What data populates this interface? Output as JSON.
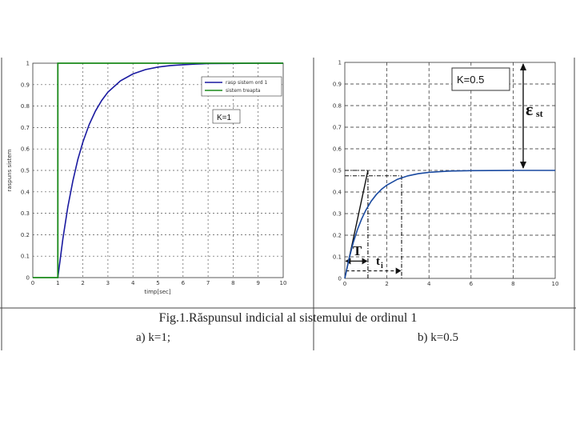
{
  "caption": "Fig.1.Răspunsul indicial al sistemului de ordinul 1",
  "subcaption_a": "a) k=1;",
  "subcaption_b": "b) k=0.5",
  "chart_data": [
    {
      "type": "line",
      "xlabel": "timp[sec]",
      "ylabel": "raspuns sistem",
      "xlim": [
        0,
        10
      ],
      "ylim": [
        0,
        1
      ],
      "x_ticks": [
        0,
        1,
        2,
        3,
        4,
        5,
        6,
        7,
        8,
        9,
        10
      ],
      "y_ticks": [
        0,
        0.1,
        0.2,
        0.3,
        0.4,
        0.5,
        0.6,
        0.7,
        0.8,
        0.9,
        1
      ],
      "grid": true,
      "legend_position": "top-right",
      "annotation": "K=1",
      "series": [
        {
          "name": "rasp sistem ord 1",
          "color": "#1a1aa0",
          "x": [
            1,
            1.2,
            1.4,
            1.6,
            1.8,
            2,
            2.25,
            2.5,
            2.75,
            3,
            3.5,
            4,
            4.5,
            5,
            5.5,
            6,
            6.5,
            7,
            8,
            9,
            10
          ],
          "y": [
            0,
            0.181,
            0.33,
            0.451,
            0.551,
            0.632,
            0.713,
            0.777,
            0.826,
            0.865,
            0.918,
            0.95,
            0.97,
            0.982,
            0.989,
            0.993,
            0.996,
            0.998,
            0.999,
            1.0,
            1.0
          ]
        },
        {
          "name": "sistem treapta",
          "color": "#1a8a1a",
          "x": [
            0,
            1,
            1,
            10
          ],
          "y": [
            0,
            0,
            1,
            1
          ]
        }
      ]
    },
    {
      "type": "line",
      "xlim": [
        0,
        10
      ],
      "ylim": [
        0,
        1
      ],
      "x_ticks": [
        0,
        2,
        4,
        6,
        8,
        10
      ],
      "y_ticks": [
        0,
        0.1,
        0.2,
        0.3,
        0.4,
        0.5,
        0.6,
        0.7,
        0.8,
        0.9,
        1
      ],
      "grid": true,
      "annotations": [
        "K=0.5",
        "ε",
        "st",
        "T",
        "t",
        "i"
      ],
      "series": [
        {
          "color": "#1a4aa0",
          "x": [
            0,
            0.2,
            0.4,
            0.6,
            0.8,
            1,
            1.25,
            1.5,
            1.75,
            2,
            2.5,
            3,
            3.5,
            4,
            4.5,
            5,
            6,
            8,
            10
          ],
          "y": [
            0,
            0.091,
            0.165,
            0.226,
            0.275,
            0.316,
            0.357,
            0.388,
            0.413,
            0.432,
            0.459,
            0.475,
            0.485,
            0.491,
            0.494,
            0.497,
            0.499,
            0.5,
            0.5
          ]
        }
      ]
    }
  ]
}
